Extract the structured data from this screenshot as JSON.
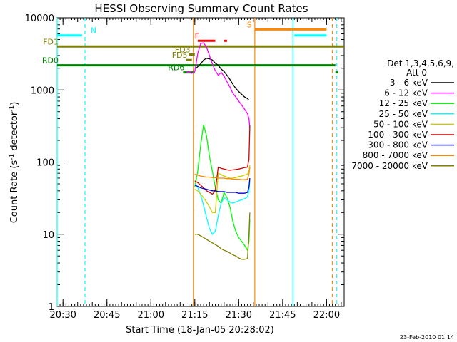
{
  "chart_data": {
    "type": "line",
    "title": "HESSI Observing Summary Count Rates",
    "xlabel": "Start Time (18-Jan-05 20:28:02)",
    "ylabel": "Count Rate (s⁻¹ detector⁻¹)",
    "ylabel_main": "Count Rate (s",
    "ylabel_sup1": "-1",
    "ylabel_mid": " detector",
    "ylabel_sup2": "-1",
    "ylabel_end": ")",
    "y_scale": "log",
    "ylim": [
      1,
      10000
    ],
    "xlim_minutes": [
      0,
      98
    ],
    "x_ticks": [
      {
        "label": "20:30",
        "m": 2
      },
      {
        "label": "20:45",
        "m": 17
      },
      {
        "label": "21:00",
        "m": 32
      },
      {
        "label": "21:15",
        "m": 47
      },
      {
        "label": "21:30",
        "m": 62
      },
      {
        "label": "21:45",
        "m": 77
      },
      {
        "label": "22:00",
        "m": 92
      }
    ],
    "y_ticks": [
      {
        "label": "1",
        "v": 1
      },
      {
        "label": "10",
        "v": 10
      },
      {
        "label": "100",
        "v": 100
      },
      {
        "label": "1000",
        "v": 1000
      },
      {
        "label": "10000",
        "v": 10000
      }
    ],
    "legend_title_1": "Det 1,3,4,5,6,9,",
    "legend_title_2": "Att 0",
    "legend_placement": "right",
    "footer_date": "23-Feb-2010 01:14",
    "series": [
      {
        "name": "3 - 6 keV",
        "color": "#000000",
        "points": [
          [
            47.2,
            1950
          ],
          [
            48,
            2100
          ],
          [
            49,
            2300
          ],
          [
            50,
            2600
          ],
          [
            51,
            2750
          ],
          [
            52,
            2700
          ],
          [
            53,
            2600
          ],
          [
            54,
            2350
          ],
          [
            55,
            2200
          ],
          [
            56,
            1950
          ],
          [
            57,
            1800
          ],
          [
            58,
            1600
          ],
          [
            59,
            1400
          ],
          [
            60,
            1200
          ],
          [
            61,
            1050
          ],
          [
            62,
            950
          ],
          [
            63,
            870
          ],
          [
            64,
            800
          ],
          [
            65,
            760
          ],
          [
            65.5,
            720
          ]
        ]
      },
      {
        "name": "6 - 12 keV",
        "color": "#ff00ff",
        "points": [
          [
            44,
            1700
          ],
          [
            45,
            1800
          ],
          [
            46,
            1700
          ],
          [
            47,
            1800
          ],
          [
            48,
            3200
          ],
          [
            49,
            4400
          ],
          [
            50,
            4500
          ],
          [
            51,
            3900
          ],
          [
            52,
            3000
          ],
          [
            53,
            2300
          ],
          [
            54,
            1850
          ],
          [
            55,
            1600
          ],
          [
            56,
            1750
          ],
          [
            57,
            1550
          ],
          [
            58,
            1300
          ],
          [
            59,
            1100
          ],
          [
            60,
            900
          ],
          [
            61,
            800
          ],
          [
            62,
            700
          ],
          [
            63,
            620
          ],
          [
            64,
            540
          ],
          [
            65,
            470
          ],
          [
            65.5,
            400
          ],
          [
            65.8,
            300
          ]
        ]
      },
      {
        "name": "12 - 25 keV",
        "color": "#00ff00",
        "points": [
          [
            47,
            45
          ],
          [
            48,
            75
          ],
          [
            49,
            170
          ],
          [
            50,
            330
          ],
          [
            51,
            230
          ],
          [
            52,
            120
          ],
          [
            53,
            75
          ],
          [
            54,
            45
          ],
          [
            55,
            30
          ],
          [
            56,
            27
          ],
          [
            57,
            38
          ],
          [
            58,
            32
          ],
          [
            59,
            24
          ],
          [
            60,
            15
          ],
          [
            61,
            11
          ],
          [
            62,
            9
          ],
          [
            63,
            8
          ],
          [
            64,
            7
          ],
          [
            65,
            6
          ],
          [
            65.5,
            8
          ],
          [
            65.8,
            16
          ]
        ]
      },
      {
        "name": "25 - 50 keV",
        "color": "#00ffff",
        "points": [
          [
            47,
            50
          ],
          [
            48,
            45
          ],
          [
            49,
            35
          ],
          [
            50,
            25
          ],
          [
            51,
            17
          ],
          [
            52,
            12
          ],
          [
            53,
            10
          ],
          [
            54,
            11
          ],
          [
            55,
            18
          ],
          [
            56,
            27
          ],
          [
            57,
            32
          ],
          [
            58,
            30
          ],
          [
            59,
            28
          ],
          [
            60,
            27
          ],
          [
            61,
            28
          ],
          [
            62,
            29
          ],
          [
            63,
            30
          ],
          [
            64,
            31
          ],
          [
            65,
            33
          ],
          [
            65.5,
            40
          ],
          [
            65.8,
            55
          ]
        ]
      },
      {
        "name": "50 - 100 keV",
        "color": "#cccc00",
        "points": [
          [
            47,
            42
          ],
          [
            48,
            40
          ],
          [
            49,
            36
          ],
          [
            50,
            32
          ],
          [
            51,
            28
          ],
          [
            52,
            24
          ],
          [
            53,
            20
          ],
          [
            54,
            20
          ],
          [
            55,
            70
          ],
          [
            56,
            67
          ],
          [
            57,
            64
          ],
          [
            58,
            62
          ],
          [
            59,
            60
          ],
          [
            60,
            60
          ],
          [
            61,
            61
          ],
          [
            62,
            63
          ],
          [
            63,
            64
          ],
          [
            64,
            66
          ],
          [
            65,
            68
          ],
          [
            65.5,
            75
          ],
          [
            65.8,
            90
          ]
        ]
      },
      {
        "name": "100 - 300 keV",
        "color": "#cc0000",
        "points": [
          [
            47,
            55
          ],
          [
            48,
            52
          ],
          [
            49,
            48
          ],
          [
            50,
            44
          ],
          [
            51,
            40
          ],
          [
            52,
            38
          ],
          [
            53,
            36
          ],
          [
            54,
            40
          ],
          [
            55,
            85
          ],
          [
            56,
            82
          ],
          [
            57,
            80
          ],
          [
            58,
            78
          ],
          [
            59,
            77
          ],
          [
            60,
            78
          ],
          [
            61,
            79
          ],
          [
            62,
            80
          ],
          [
            63,
            82
          ],
          [
            64,
            84
          ],
          [
            65,
            85
          ],
          [
            65.5,
            110
          ],
          [
            65.8,
            320
          ]
        ]
      },
      {
        "name": "300 - 800 keV",
        "color": "#0000cc",
        "points": [
          [
            47,
            48
          ],
          [
            48,
            46
          ],
          [
            49,
            44
          ],
          [
            50,
            43
          ],
          [
            51,
            42
          ],
          [
            52,
            41
          ],
          [
            53,
            40
          ],
          [
            54,
            40
          ],
          [
            55,
            39
          ],
          [
            56,
            39
          ],
          [
            57,
            39
          ],
          [
            58,
            38
          ],
          [
            59,
            38
          ],
          [
            60,
            38
          ],
          [
            61,
            38
          ],
          [
            62,
            37
          ],
          [
            63,
            37
          ],
          [
            64,
            37
          ],
          [
            65,
            38
          ],
          [
            65.5,
            45
          ],
          [
            65.8,
            60
          ]
        ]
      },
      {
        "name": "800 - 7000 keV",
        "color": "#ff8800",
        "points": [
          [
            47,
            68
          ],
          [
            48,
            66
          ],
          [
            49,
            64
          ],
          [
            50,
            63
          ],
          [
            51,
            62
          ],
          [
            52,
            62
          ],
          [
            53,
            61
          ],
          [
            54,
            61
          ],
          [
            55,
            60
          ],
          [
            56,
            60
          ],
          [
            57,
            60
          ],
          [
            58,
            59
          ],
          [
            59,
            59
          ],
          [
            60,
            58
          ],
          [
            61,
            58
          ],
          [
            62,
            58
          ],
          [
            63,
            57
          ],
          [
            64,
            57
          ],
          [
            65,
            58
          ],
          [
            65.5,
            68
          ],
          [
            65.8,
            85
          ]
        ]
      },
      {
        "name": "7000 - 20000 keV",
        "color": "#808000",
        "points": [
          [
            47,
            10
          ],
          [
            48,
            10
          ],
          [
            49,
            9.5
          ],
          [
            50,
            9
          ],
          [
            51,
            8.5
          ],
          [
            52,
            8
          ],
          [
            53,
            7.6
          ],
          [
            54,
            7.2
          ],
          [
            55,
            6.8
          ],
          [
            56,
            6.3
          ],
          [
            57,
            6
          ],
          [
            58,
            5.8
          ],
          [
            59,
            5.5
          ],
          [
            60,
            5.2
          ],
          [
            61,
            5
          ],
          [
            62,
            4.7
          ],
          [
            63,
            4.5
          ],
          [
            64,
            4.5
          ],
          [
            65,
            4.6
          ],
          [
            65.5,
            10
          ],
          [
            65.8,
            20
          ]
        ]
      }
    ],
    "flag_lines": [
      {
        "label": "N",
        "color": "#00ffff",
        "value": 5700,
        "x1": 0,
        "x2": 8.5
      },
      {
        "label": "",
        "color": "#00ffff",
        "value": 5700,
        "x1": 81,
        "x2": 92
      },
      {
        "label": "S",
        "color": "#ff8800",
        "value": 6900,
        "x1": 67.5,
        "x2": 92
      },
      {
        "label": "F",
        "color": "#ff0000",
        "value": 4800,
        "x1": 48,
        "x2": 54
      },
      {
        "label": "",
        "color": "#ff0000",
        "value": 4800,
        "x1": 57,
        "x2": 58
      },
      {
        "label": "FD1",
        "color": "#808000",
        "value": 4000,
        "x1": 0,
        "x2": 98
      },
      {
        "label": "FD3",
        "color": "#808000",
        "value": 3100,
        "x1": 45,
        "x2": 47
      },
      {
        "label": "FD5",
        "color": "#808000",
        "value": 2600,
        "x1": 44,
        "x2": 46
      },
      {
        "label": "RD0",
        "color": "#008000",
        "value": 2200,
        "x1": 0,
        "x2": 95
      },
      {
        "label": "RD6",
        "color": "#008000",
        "value": 1750,
        "x1": 43,
        "x2": 47
      },
      {
        "label": "",
        "color": "#008000",
        "value": 1750,
        "x1": 95,
        "x2": 96
      }
    ],
    "vertical_markers": [
      {
        "m": 0,
        "color": "#00ffff",
        "style": "solid"
      },
      {
        "m": 9.5,
        "color": "#00ffff",
        "style": "dashed"
      },
      {
        "m": 46.5,
        "color": "#ff8800",
        "style": "solid"
      },
      {
        "m": 67.5,
        "color": "#ff8800",
        "style": "solid"
      },
      {
        "m": 80.5,
        "color": "#00ffff",
        "style": "solid"
      },
      {
        "m": 94,
        "color": "#ff8800",
        "style": "dashed"
      },
      {
        "m": 95.5,
        "color": "#00ffff",
        "style": "dashed"
      }
    ]
  }
}
